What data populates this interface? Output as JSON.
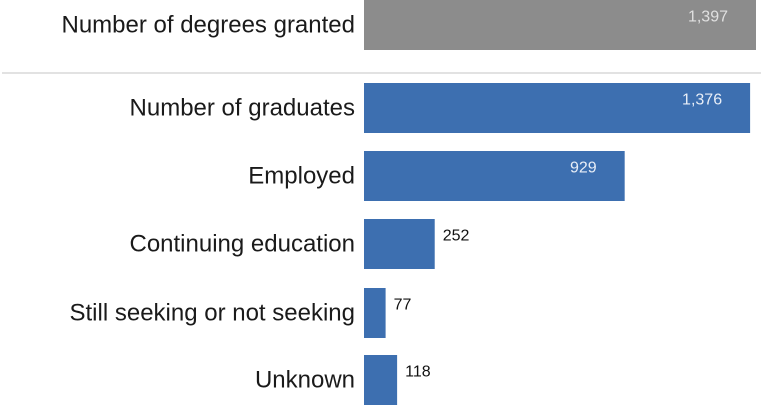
{
  "colors": {
    "total_bar": "#8c8c8c",
    "graduate_bars": "#3d6fb0",
    "divider": "#d9d9d9"
  },
  "chart_data": {
    "type": "bar",
    "orientation": "horizontal",
    "categories": [
      "Number of degrees granted",
      "Number of graduates",
      "Employed",
      "Continuing education",
      "Still seeking or not seeking",
      "Unknown"
    ],
    "values": [
      1397,
      1376,
      929,
      252,
      77,
      118
    ],
    "value_labels": [
      "1,397",
      "1,376",
      "929",
      "252",
      "77",
      "118"
    ],
    "title": "",
    "xlabel": "",
    "ylabel": "",
    "xlim": [
      0,
      1397
    ],
    "grid": false,
    "legend": "none"
  }
}
